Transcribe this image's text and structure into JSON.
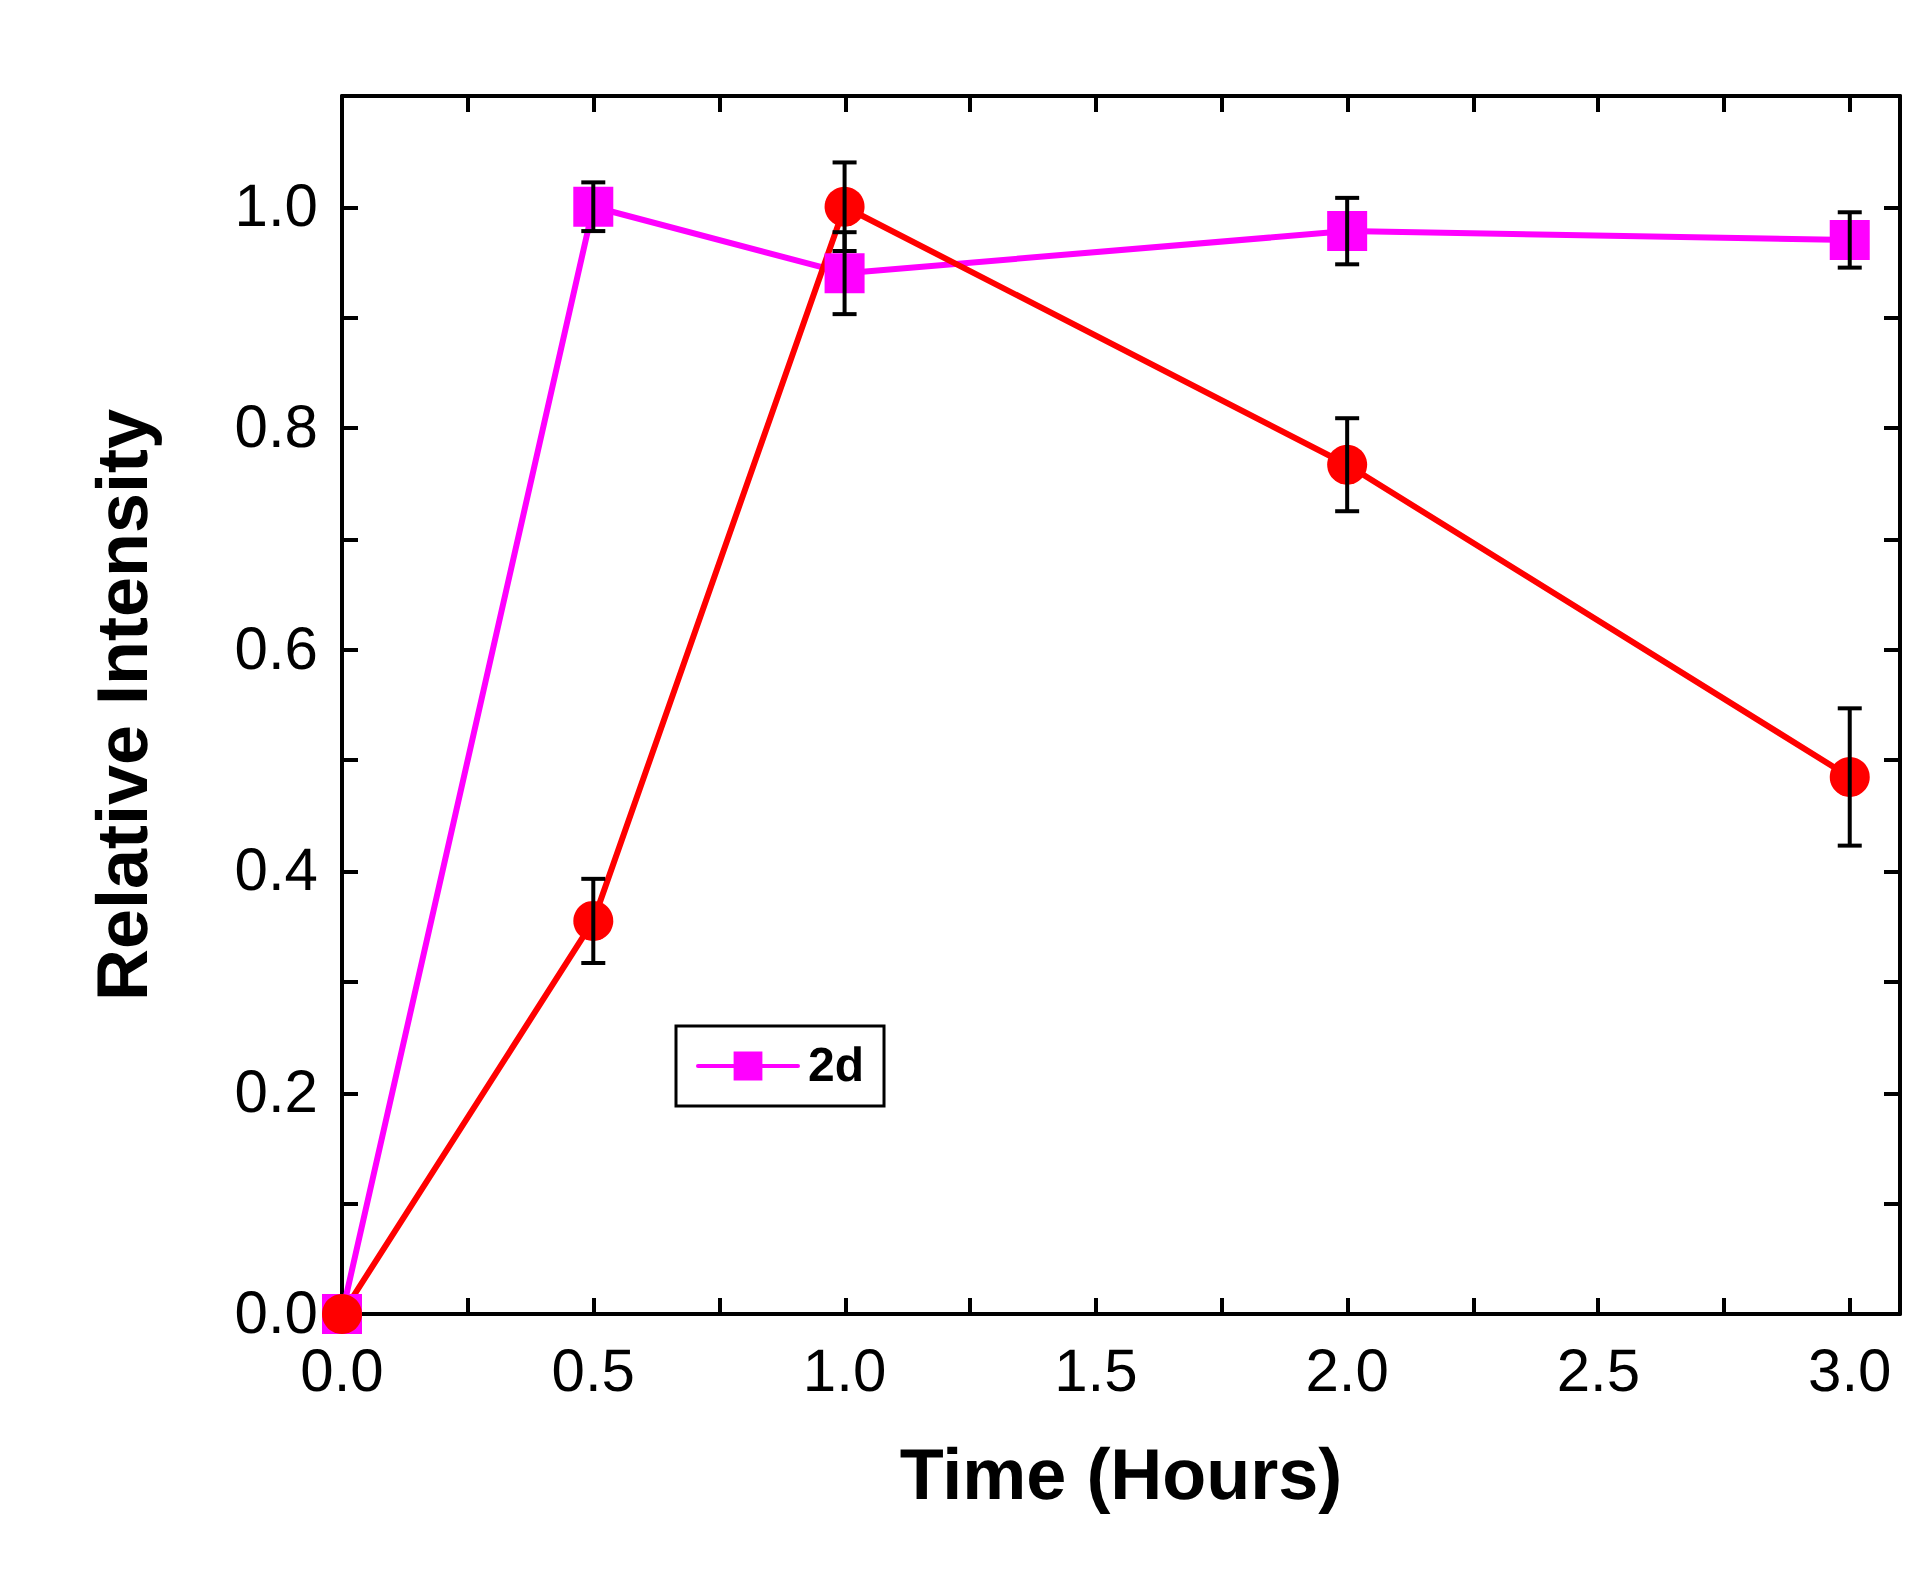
{
  "chart_data": {
    "type": "line",
    "xlabel": "Time (Hours)",
    "ylabel": "Relative Intensity",
    "x": [
      0,
      0.5,
      1,
      2,
      3
    ],
    "xlim": [
      0,
      3.1
    ],
    "ylim": [
      0,
      1.1
    ],
    "xticks": [
      {
        "value": 0,
        "label": "0.0"
      },
      {
        "value": 0.25,
        "label": null
      },
      {
        "value": 0.5,
        "label": "0.5"
      },
      {
        "value": 0.75,
        "label": null
      },
      {
        "value": 1,
        "label": "1.0"
      },
      {
        "value": 1.25,
        "label": null
      },
      {
        "value": 1.5,
        "label": "1.5"
      },
      {
        "value": 1.75,
        "label": null
      },
      {
        "value": 2,
        "label": "2.0"
      },
      {
        "value": 2.25,
        "label": null
      },
      {
        "value": 2.5,
        "label": "2.5"
      },
      {
        "value": 2.75,
        "label": null
      },
      {
        "value": 3,
        "label": "3.0"
      }
    ],
    "yticks": [
      {
        "value": 0,
        "label": "0.0"
      },
      {
        "value": 0.1,
        "label": null
      },
      {
        "value": 0.2,
        "label": "0.2"
      },
      {
        "value": 0.3,
        "label": null
      },
      {
        "value": 0.4,
        "label": "0.4"
      },
      {
        "value": 0.5,
        "label": null
      },
      {
        "value": 0.6,
        "label": "0.6"
      },
      {
        "value": 0.7,
        "label": null
      },
      {
        "value": 0.8,
        "label": "0.8"
      },
      {
        "value": 0.9,
        "label": null
      },
      {
        "value": 1,
        "label": "1.0"
      }
    ],
    "grid": false,
    "legend": "bottom",
    "line_style": "solid",
    "series": [
      {
        "name": "2d",
        "color": "#ff00ff",
        "marker": "square",
        "values": [
          0,
          1.0,
          0.94,
          0.978,
          0.97
        ],
        "errors": [
          null,
          0.022,
          0.037,
          0.03,
          0.025
        ]
      },
      {
        "color": "#ff0000",
        "marker": "circle",
        "values": [
          0,
          0.355,
          1.0,
          0.767,
          0.485
        ],
        "errors": [
          null,
          0.038,
          0.04,
          0.042,
          0.062
        ]
      }
    ]
  }
}
